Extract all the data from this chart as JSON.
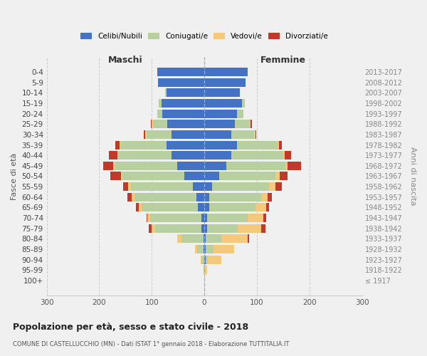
{
  "age_groups": [
    "0-4",
    "5-9",
    "10-14",
    "15-19",
    "20-24",
    "25-29",
    "30-34",
    "35-39",
    "40-44",
    "45-49",
    "50-54",
    "55-59",
    "60-64",
    "65-69",
    "70-74",
    "75-79",
    "80-84",
    "85-89",
    "90-94",
    "95-99",
    "100+"
  ],
  "birth_years": [
    "2013-2017",
    "2008-2012",
    "2003-2007",
    "1998-2002",
    "1993-1997",
    "1988-1992",
    "1983-1987",
    "1978-1982",
    "1973-1977",
    "1968-1972",
    "1963-1967",
    "1958-1962",
    "1953-1957",
    "1948-1952",
    "1943-1947",
    "1938-1942",
    "1933-1937",
    "1928-1932",
    "1923-1927",
    "1918-1922",
    "≤ 1917"
  ],
  "male_celibe": [
    90,
    88,
    72,
    82,
    80,
    70,
    62,
    72,
    62,
    52,
    38,
    22,
    15,
    12,
    5,
    5,
    2,
    1,
    0,
    0,
    0
  ],
  "male_coniugato": [
    0,
    0,
    2,
    5,
    10,
    28,
    48,
    88,
    102,
    118,
    118,
    118,
    118,
    108,
    98,
    88,
    42,
    12,
    5,
    1,
    0
  ],
  "male_vedovo": [
    0,
    0,
    0,
    0,
    0,
    2,
    2,
    2,
    2,
    3,
    3,
    5,
    5,
    5,
    5,
    8,
    8,
    5,
    2,
    0,
    0
  ],
  "male_divorziato": [
    0,
    0,
    0,
    0,
    0,
    2,
    3,
    8,
    15,
    20,
    20,
    10,
    8,
    5,
    2,
    5,
    0,
    0,
    0,
    0,
    0
  ],
  "fem_nubile": [
    82,
    78,
    68,
    72,
    62,
    58,
    52,
    62,
    52,
    42,
    28,
    15,
    10,
    10,
    5,
    5,
    3,
    2,
    2,
    0,
    0
  ],
  "fem_coniugata": [
    0,
    0,
    0,
    5,
    12,
    28,
    43,
    78,
    98,
    112,
    108,
    108,
    98,
    88,
    78,
    58,
    30,
    15,
    5,
    0,
    0
  ],
  "fem_vedova": [
    0,
    0,
    0,
    0,
    0,
    2,
    2,
    2,
    3,
    5,
    8,
    12,
    12,
    20,
    30,
    45,
    50,
    40,
    25,
    5,
    1
  ],
  "fem_divorziata": [
    0,
    0,
    0,
    0,
    0,
    2,
    2,
    5,
    12,
    25,
    15,
    12,
    8,
    5,
    5,
    8,
    2,
    0,
    0,
    0,
    0
  ],
  "color_celibe": "#4472c4",
  "color_coniugato": "#b8cfa0",
  "color_vedovo": "#f5c97a",
  "color_divorziato": "#c0392b",
  "title": "Popolazione per età, sesso e stato civile - 2018",
  "subtitle": "COMUNE DI CASTELLUCCHIO (MN) - Dati ISTAT 1° gennaio 2018 - Elaborazione TUTTITALIA.IT",
  "label_maschi": "Maschi",
  "label_femmine": "Femmine",
  "ylabel_left": "Fasce di età",
  "ylabel_right": "Anni di nascita",
  "legend_labels": [
    "Celibi/Nubili",
    "Coniugati/e",
    "Vedovi/e",
    "Divorziati/e"
  ],
  "bg_color": "#f0f0f0",
  "xlim": 300
}
